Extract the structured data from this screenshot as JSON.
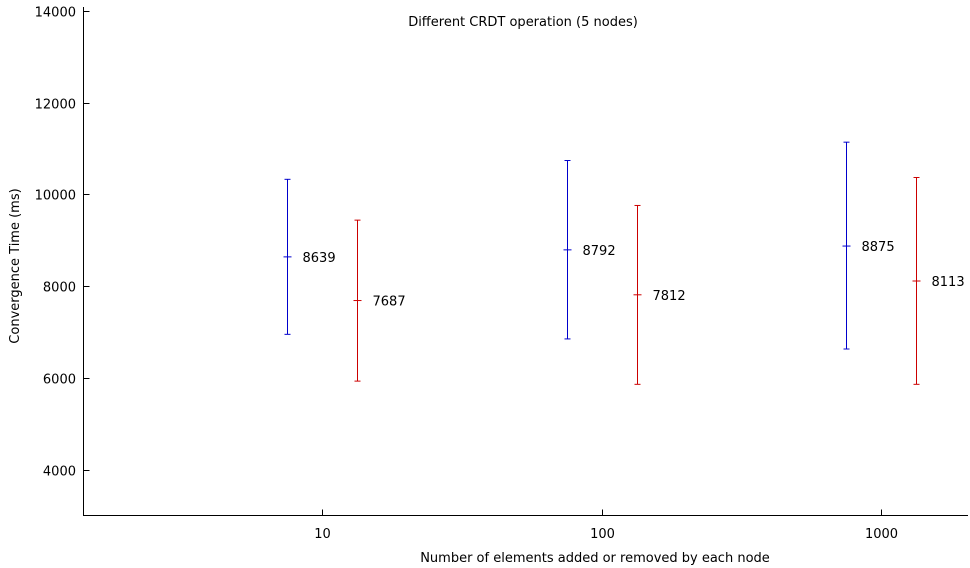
{
  "chart_data": {
    "type": "errorbar",
    "title": "Different CRDT operation (5 nodes)",
    "xlabel": "Number of elements added or removed by each node",
    "ylabel": "Convergence Time (ms)",
    "categories": [
      "10",
      "100",
      "1000"
    ],
    "ylim": [
      3000,
      14000
    ],
    "yticks": [
      4000,
      6000,
      8000,
      10000,
      12000,
      14000
    ],
    "grid": false,
    "series": [
      {
        "color": "#0000cc",
        "points": [
          {
            "category": "10",
            "mean": 8639,
            "low": 6950,
            "high": 10330,
            "label": "8639"
          },
          {
            "category": "100",
            "mean": 8792,
            "low": 6850,
            "high": 10740,
            "label": "8792"
          },
          {
            "category": "1000",
            "mean": 8875,
            "low": 6630,
            "high": 11140,
            "label": "8875"
          }
        ]
      },
      {
        "color": "#cc0000",
        "points": [
          {
            "category": "10",
            "mean": 7687,
            "low": 5930,
            "high": 9440,
            "label": "7687"
          },
          {
            "category": "100",
            "mean": 7812,
            "low": 5860,
            "high": 9760,
            "label": "7812"
          },
          {
            "category": "1000",
            "mean": 8113,
            "low": 5860,
            "high": 10370,
            "label": "8113"
          }
        ]
      }
    ]
  }
}
